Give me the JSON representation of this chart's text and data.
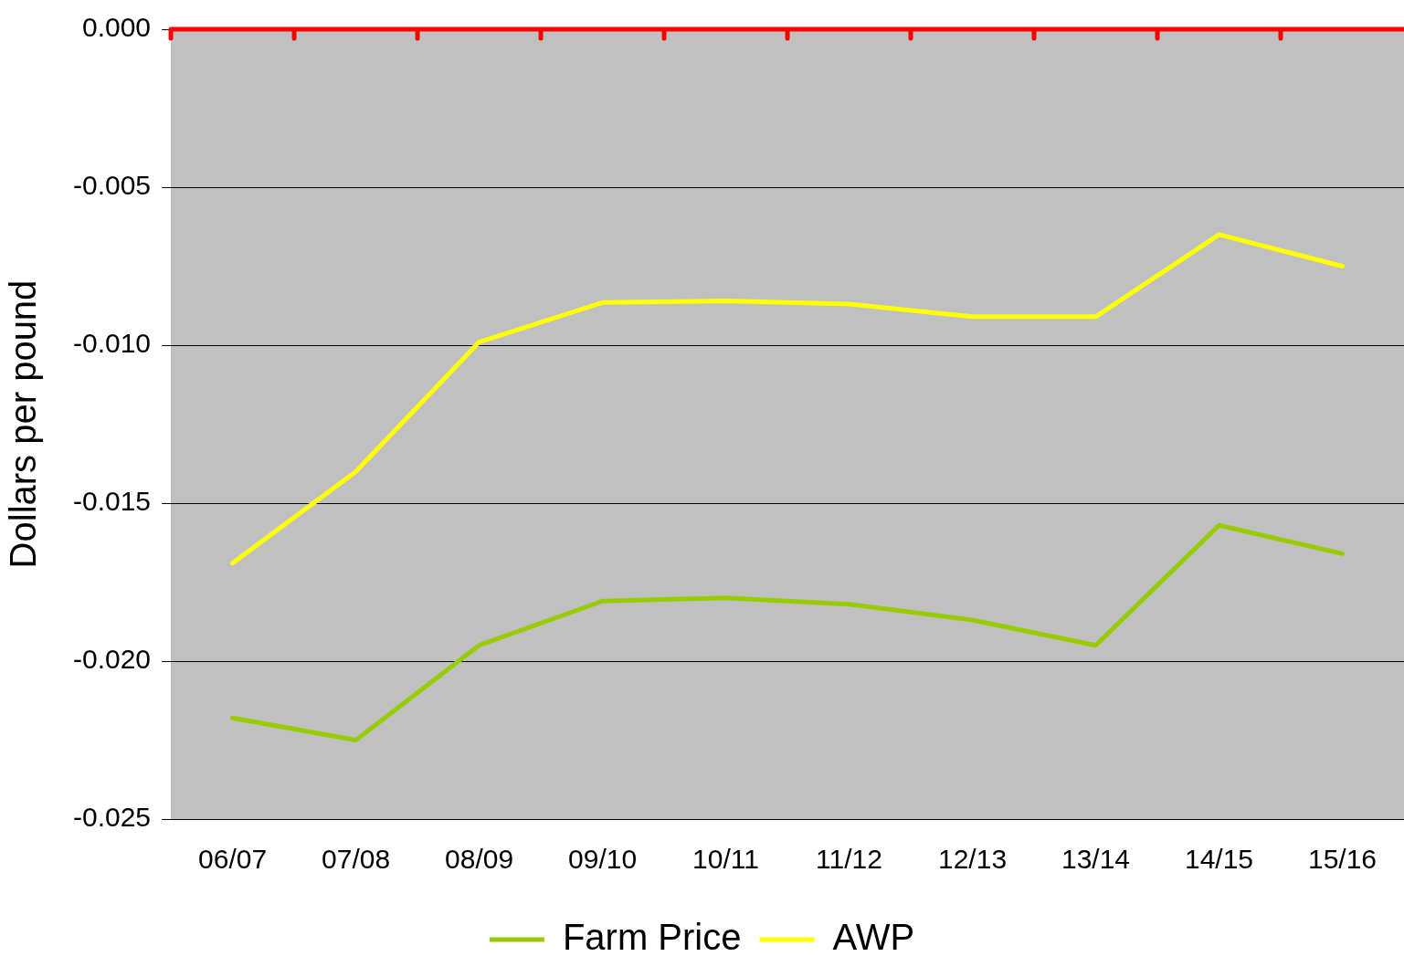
{
  "chart_data": {
    "type": "line",
    "ylabel": "Dollars per pound",
    "categories": [
      "06/07",
      "07/08",
      "08/09",
      "09/10",
      "10/11",
      "11/12",
      "12/13",
      "13/14",
      "14/15",
      "15/16"
    ],
    "series": [
      {
        "name": "Farm Price",
        "color": "#99cc00",
        "values": [
          -0.0218,
          -0.0225,
          -0.0195,
          -0.0181,
          -0.018,
          -0.0182,
          -0.0187,
          -0.0195,
          -0.0157,
          -0.0166
        ]
      },
      {
        "name": "AWP",
        "color": "#ffff00",
        "values": [
          -0.0169,
          -0.014,
          -0.0099,
          -0.00865,
          -0.0086,
          -0.0087,
          -0.0091,
          -0.0091,
          -0.0065,
          -0.0075
        ]
      }
    ],
    "ylim": [
      -0.025,
      0
    ],
    "yticks": [
      {
        "value": -0.025,
        "label": "-0.025"
      },
      {
        "value": -0.02,
        "label": "-0.020"
      },
      {
        "value": -0.015,
        "label": "-0.015"
      },
      {
        "value": -0.01,
        "label": "-0.010"
      },
      {
        "value": -0.005,
        "label": "-0.005"
      },
      {
        "value": 0,
        "label": "0.000"
      }
    ],
    "ref_lines": [
      {
        "axis": "y",
        "value": 0,
        "color": "#ff0000"
      }
    ],
    "grid": "y",
    "legend": "bottom",
    "marker": "none",
    "line_style": "solid"
  }
}
